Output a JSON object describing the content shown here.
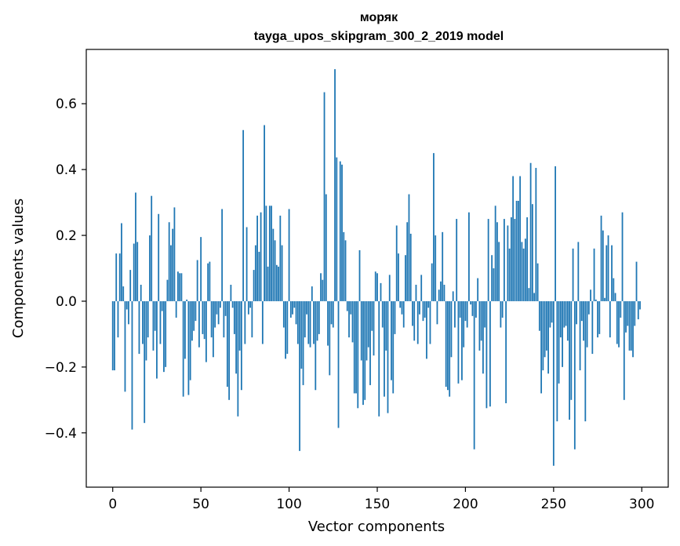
{
  "chart_data": {
    "type": "bar",
    "title": "моряк",
    "subtitle": "tayga_upos_skipgram_300_2_2019 model",
    "xlabel": "Vector components",
    "ylabel": "Components values",
    "xlim": [
      -15,
      315
    ],
    "ylim": [
      -0.565,
      0.765
    ],
    "xticks": [
      0,
      50,
      100,
      150,
      200,
      250,
      300
    ],
    "xtick_labels": [
      "0",
      "50",
      "100",
      "150",
      "200",
      "250",
      "300"
    ],
    "yticks": [
      -0.4,
      -0.2,
      0.0,
      0.2,
      0.4,
      0.6
    ],
    "ytick_labels": [
      "−0.4",
      "−0.2",
      "0.0",
      "0.2",
      "0.4",
      "0.6"
    ],
    "bar_color": "#1f77b4",
    "x": "0..299",
    "values": [
      -0.21,
      -0.21,
      0.145,
      -0.11,
      0.145,
      0.237,
      0.045,
      -0.275,
      -0.025,
      -0.07,
      0.095,
      -0.39,
      0.175,
      0.33,
      0.18,
      -0.16,
      0.05,
      -0.13,
      -0.37,
      -0.18,
      -0.11,
      0.2,
      0.32,
      -0.15,
      -0.09,
      -0.235,
      0.265,
      -0.13,
      -0.03,
      -0.215,
      -0.2,
      0.065,
      0.24,
      0.17,
      0.22,
      0.285,
      -0.05,
      0.09,
      0.085,
      0.085,
      -0.29,
      -0.175,
      0.005,
      -0.285,
      -0.24,
      -0.12,
      -0.09,
      -0.06,
      0.125,
      -0.14,
      0.195,
      -0.1,
      -0.115,
      -0.185,
      0.115,
      0.12,
      -0.11,
      -0.17,
      -0.08,
      -0.04,
      -0.07,
      -0.02,
      0.28,
      -0.11,
      -0.045,
      -0.26,
      -0.3,
      0.05,
      -0.02,
      -0.1,
      -0.22,
      -0.35,
      -0.15,
      -0.27,
      0.52,
      -0.13,
      0.225,
      -0.04,
      -0.02,
      -0.11,
      0.095,
      0.17,
      0.26,
      0.15,
      0.27,
      -0.13,
      0.535,
      0.29,
      0.105,
      0.29,
      0.29,
      0.22,
      0.185,
      0.11,
      0.105,
      0.26,
      0.17,
      -0.08,
      -0.175,
      -0.16,
      0.28,
      -0.05,
      -0.04,
      -0.02,
      -0.07,
      -0.13,
      -0.455,
      -0.205,
      -0.255,
      -0.11,
      -0.04,
      -0.13,
      -0.14,
      0.045,
      -0.13,
      -0.27,
      -0.12,
      -0.1,
      0.085,
      0.065,
      0.635,
      0.325,
      -0.135,
      -0.225,
      -0.07,
      -0.08,
      0.705,
      0.437,
      -0.385,
      0.425,
      0.415,
      0.21,
      0.185,
      -0.03,
      -0.11,
      -0.04,
      -0.125,
      -0.28,
      -0.28,
      -0.325,
      0.155,
      -0.18,
      -0.315,
      -0.3,
      -0.18,
      -0.14,
      -0.255,
      -0.09,
      -0.165,
      0.09,
      0.085,
      -0.35,
      0.055,
      -0.08,
      -0.29,
      -0.15,
      -0.34,
      0.08,
      -0.24,
      -0.28,
      -0.1,
      0.23,
      0.145,
      -0.02,
      -0.04,
      -0.08,
      0.14,
      0.24,
      0.325,
      0.205,
      -0.075,
      -0.12,
      0.05,
      -0.13,
      -0.04,
      0.08,
      -0.06,
      -0.05,
      -0.175,
      -0.02,
      -0.13,
      0.115,
      0.45,
      0.2,
      -0.07,
      0.035,
      0.06,
      0.21,
      0.05,
      -0.26,
      -0.27,
      -0.29,
      -0.17,
      0.03,
      -0.08,
      0.25,
      -0.25,
      -0.05,
      -0.24,
      -0.14,
      -0.06,
      -0.08,
      0.27,
      -0.01,
      -0.045,
      -0.45,
      -0.05,
      0.07,
      -0.15,
      -0.12,
      -0.22,
      -0.08,
      -0.325,
      0.25,
      -0.32,
      0.14,
      0.1,
      0.29,
      0.24,
      0.18,
      -0.08,
      -0.05,
      0.25,
      -0.31,
      0.23,
      0.16,
      0.255,
      0.38,
      0.25,
      0.305,
      0.305,
      0.38,
      0.18,
      0.16,
      0.19,
      0.255,
      0.04,
      0.42,
      0.295,
      0.025,
      0.405,
      0.115,
      -0.09,
      -0.28,
      -0.21,
      -0.17,
      -0.15,
      -0.22,
      -0.08,
      -0.065,
      -0.5,
      0.41,
      -0.365,
      -0.25,
      -0.11,
      -0.2,
      -0.08,
      -0.075,
      -0.12,
      -0.36,
      -0.3,
      0.16,
      -0.45,
      -0.07,
      0.18,
      -0.21,
      -0.06,
      -0.12,
      -0.365,
      -0.14,
      -0.04,
      0.035,
      -0.16,
      0.16,
      0.005,
      -0.11,
      -0.1,
      0.26,
      0.215,
      0.01,
      0.17,
      0.2,
      -0.11,
      0.17,
      0.07,
      0.025,
      -0.13,
      -0.14,
      -0.05,
      0.27,
      -0.3,
      -0.095,
      -0.075,
      -0.15,
      -0.15,
      -0.17,
      -0.075,
      0.12,
      -0.055,
      -0.025
    ]
  }
}
